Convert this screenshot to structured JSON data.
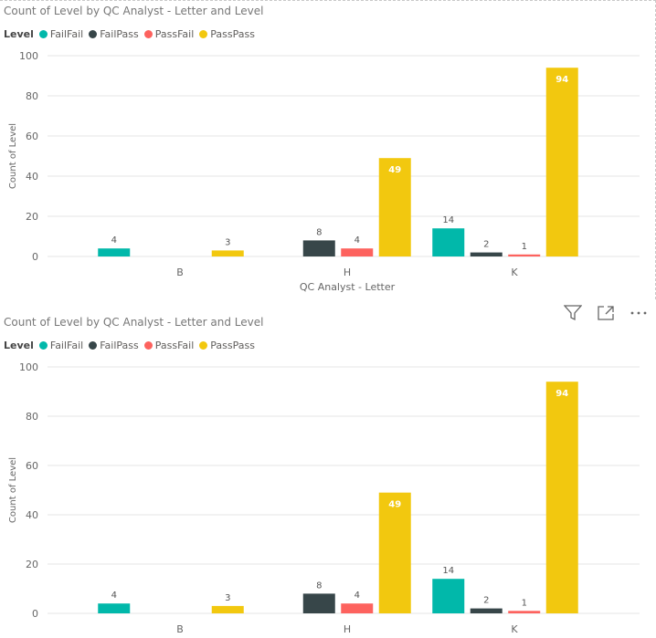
{
  "visuals": [
    {
      "title": "Count of Level by QC Analyst - Letter and Level",
      "legend": {
        "title": "Level",
        "items": [
          {
            "name": "FailFail",
            "color": "#01B8AA"
          },
          {
            "name": "FailPass",
            "color": "#374649"
          },
          {
            "name": "PassFail",
            "color": "#FD625E"
          },
          {
            "name": "PassPass",
            "color": "#F2C80F"
          }
        ]
      },
      "xlabel": "QC Analyst - Letter"
    },
    {
      "title": "Count of Level by QC Analyst - Letter and Level",
      "legend": {
        "title": "Level",
        "items": [
          {
            "name": "FailFail",
            "color": "#01B8AA"
          },
          {
            "name": "FailPass",
            "color": "#374649"
          },
          {
            "name": "PassFail",
            "color": "#FD625E"
          },
          {
            "name": "PassPass",
            "color": "#F2C80F"
          }
        ]
      },
      "xlabel": ""
    }
  ],
  "toolbar": {
    "filter_icon": "filter-icon",
    "focus_icon": "focus-mode-icon",
    "more_icon": "more-options-icon"
  },
  "chart_data": [
    {
      "type": "bar",
      "title": "Count of Level by QC Analyst - Letter and Level",
      "categories": [
        "B",
        "H",
        "K"
      ],
      "series": [
        {
          "name": "FailFail",
          "color": "#01B8AA",
          "values": [
            4,
            null,
            14
          ]
        },
        {
          "name": "FailPass",
          "color": "#374649",
          "values": [
            null,
            8,
            2
          ]
        },
        {
          "name": "PassFail",
          "color": "#FD625E",
          "values": [
            null,
            4,
            1
          ]
        },
        {
          "name": "PassPass",
          "color": "#F2C80F",
          "values": [
            3,
            49,
            94
          ]
        }
      ],
      "xlabel": "QC Analyst - Letter",
      "ylabel": "Count of Level",
      "ylim": [
        0,
        100
      ],
      "yticks": [
        0,
        20,
        40,
        60,
        80,
        100
      ],
      "grid": true
    },
    {
      "type": "bar",
      "title": "Count of Level by QC Analyst - Letter and Level",
      "categories": [
        "B",
        "H",
        "K"
      ],
      "series": [
        {
          "name": "FailFail",
          "color": "#01B8AA",
          "values": [
            4,
            null,
            14
          ]
        },
        {
          "name": "FailPass",
          "color": "#374649",
          "values": [
            null,
            8,
            2
          ]
        },
        {
          "name": "PassFail",
          "color": "#FD625E",
          "values": [
            null,
            4,
            1
          ]
        },
        {
          "name": "PassPass",
          "color": "#F2C80F",
          "values": [
            3,
            49,
            94
          ]
        }
      ],
      "xlabel": "",
      "ylabel": "Count of Level",
      "ylim": [
        0,
        100
      ],
      "yticks": [
        0,
        20,
        40,
        60,
        80,
        100
      ],
      "grid": true
    }
  ]
}
